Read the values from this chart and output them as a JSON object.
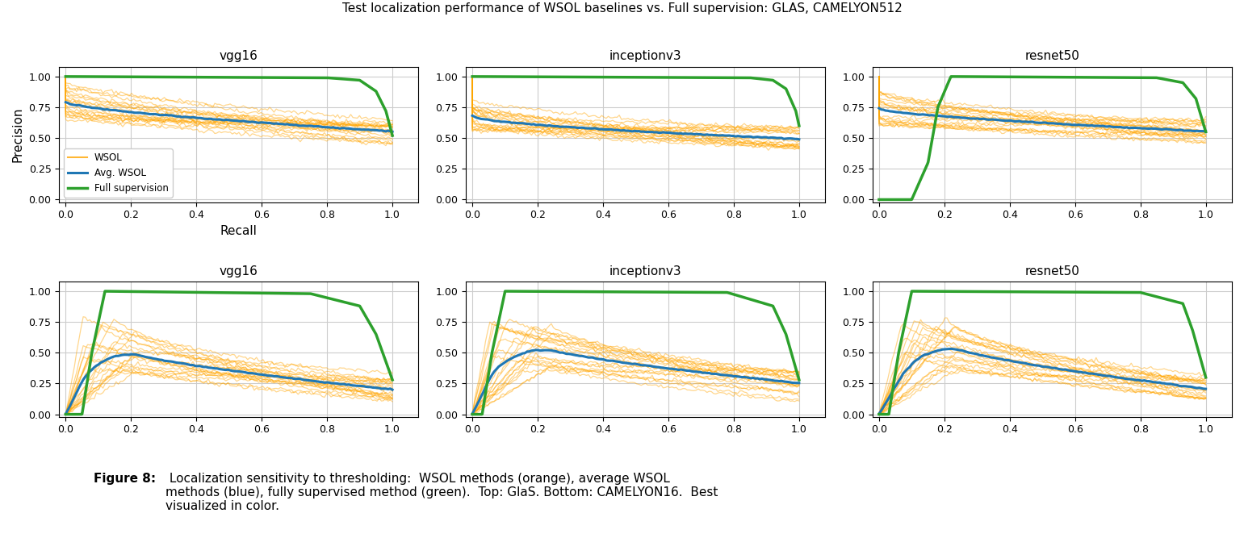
{
  "title": "Test localization performance of WSOL baselines vs. Full supervision: GLAS, CAMELYON512",
  "col_titles": [
    "vgg16",
    "inceptionv3",
    "resnet50"
  ],
  "xlabel": "Recall",
  "ylabel": "Precision",
  "ylim": [
    -0.02,
    1.08
  ],
  "xlim": [
    -0.02,
    1.08
  ],
  "yticks": [
    0.0,
    0.25,
    0.5,
    0.75,
    1.0
  ],
  "xticks": [
    0.0,
    0.2,
    0.4,
    0.6,
    0.8,
    1.0
  ],
  "orange_color": "#FFA500",
  "orange_alpha": 0.45,
  "blue_color": "#1f77b4",
  "green_color": "#2ca02c",
  "lw_wsol": 0.9,
  "lw_avg": 2.2,
  "lw_full": 2.5,
  "figsize": [
    15.41,
    6.93
  ],
  "dpi": 100,
  "num_wsol_curves": 20,
  "caption_bold": "Figure 8:",
  "caption_text": " Localization sensitivity to thresholding:  WSOL methods (orange), average WSOL\nmethods (blue), fully supervised method (green).  Top: GlaS. Bottom: CAMELYON16.  Best\nvisualized in color."
}
